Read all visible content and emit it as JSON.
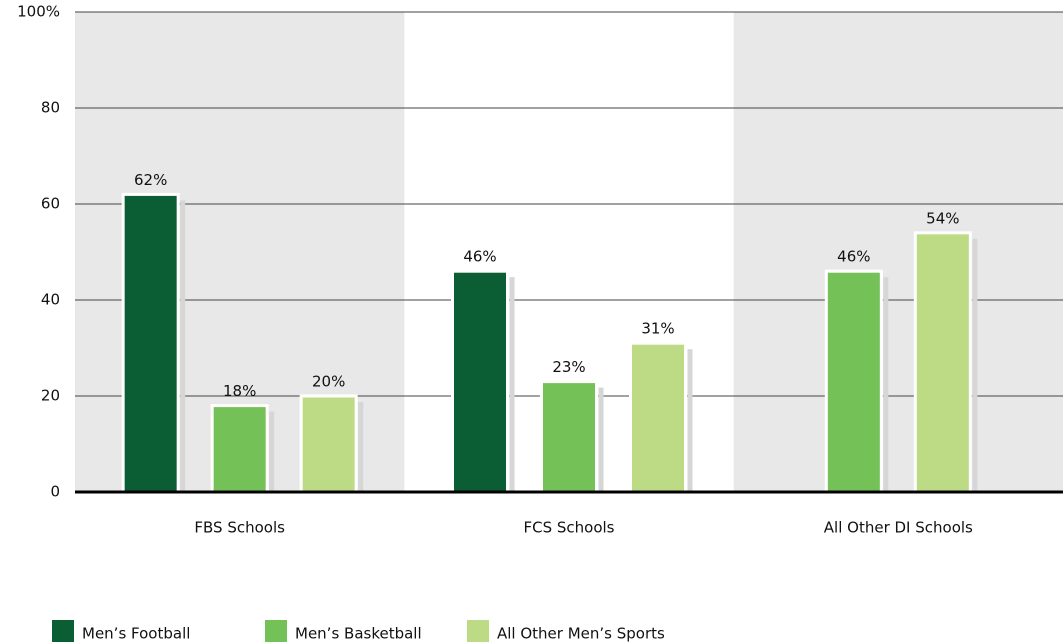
{
  "chart_data": {
    "type": "bar",
    "categories": [
      "FBS Schools",
      "FCS Schools",
      "All Other DI Schools"
    ],
    "series": [
      {
        "name": "Men’s Football",
        "color": "#0b5e33",
        "values": [
          62,
          46,
          null
        ],
        "value_labels": [
          "62%",
          "46%",
          null
        ]
      },
      {
        "name": "Men’s Basketball",
        "color": "#74c158",
        "values": [
          18,
          23,
          46
        ],
        "value_labels": [
          "18%",
          "23%",
          "46%"
        ]
      },
      {
        "name": "All Other Men’s Sports",
        "color": "#bddb85",
        "values": [
          20,
          31,
          54
        ],
        "value_labels": [
          "20%",
          "31%",
          "54%"
        ]
      }
    ],
    "ylim": [
      0,
      100
    ],
    "yticks": [
      0,
      20,
      40,
      60,
      80,
      {
        "value": 100,
        "label": "100%"
      }
    ],
    "grid": true,
    "legend": "bottom"
  }
}
